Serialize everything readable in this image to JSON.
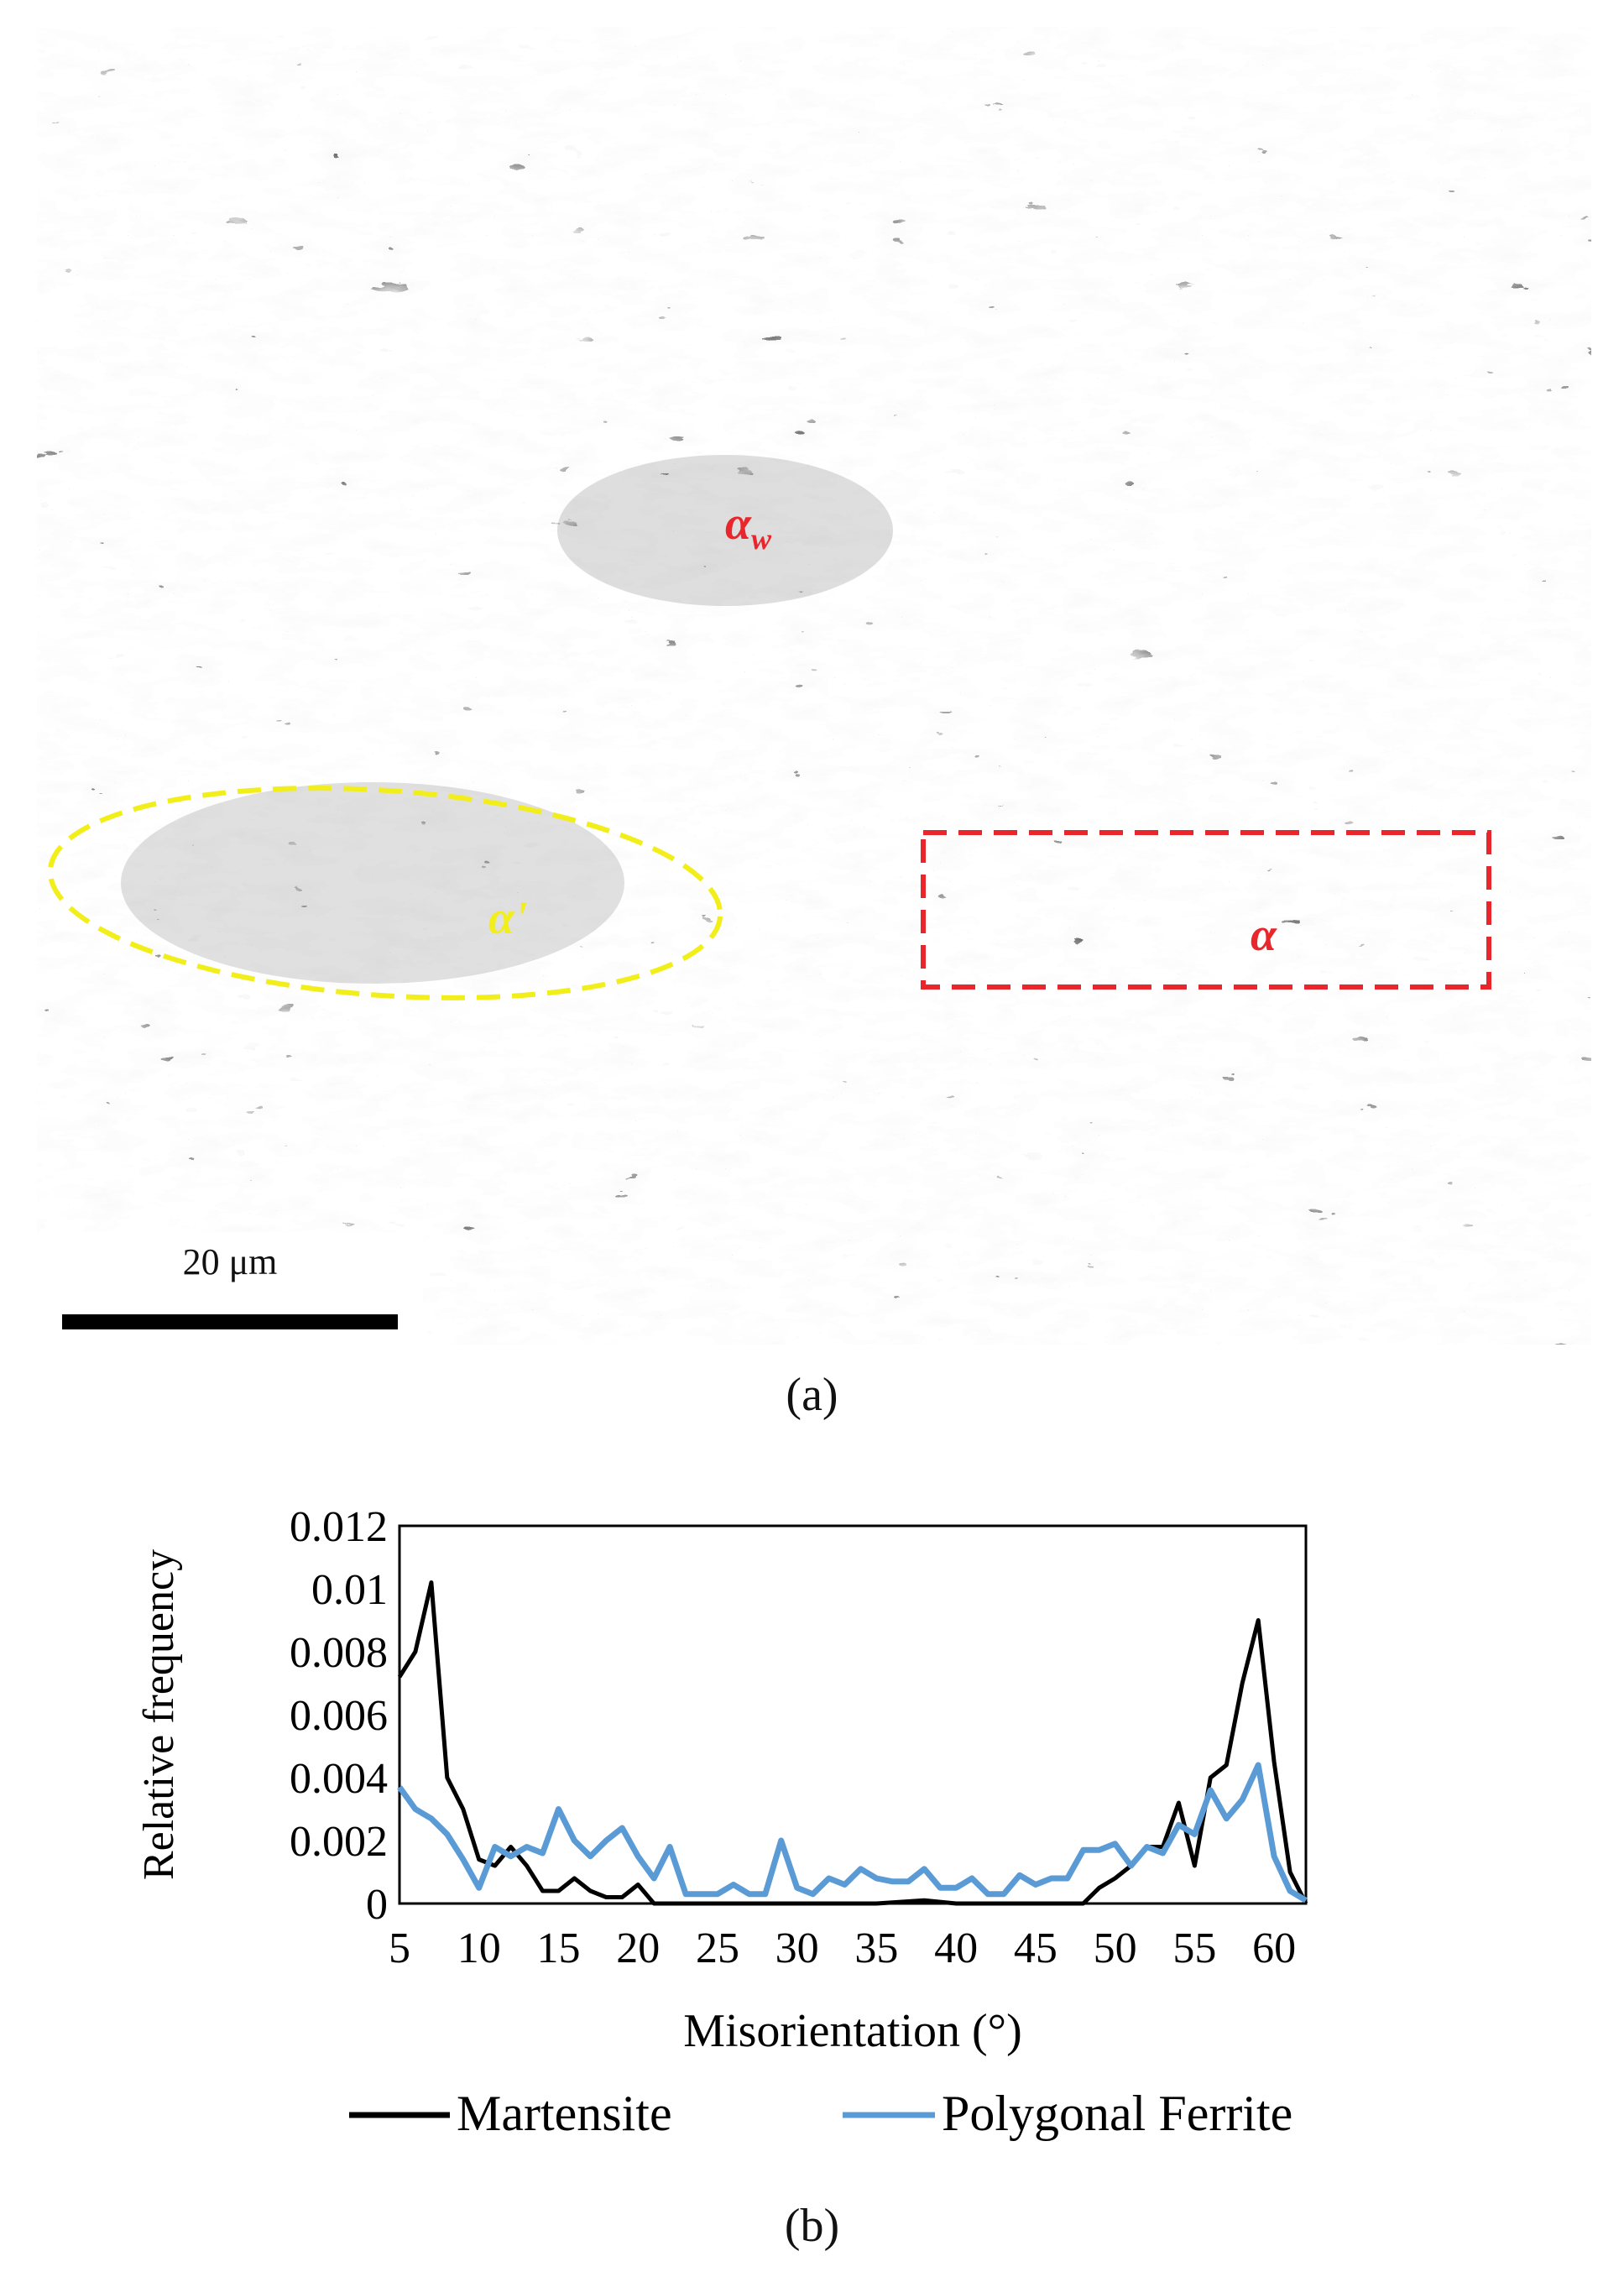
{
  "panel_a": {
    "caption": "(a)",
    "scale_bar": "20 μm",
    "labels": {
      "widmanstatten": "α",
      "widmanstatten_sub": "w",
      "martensite": "α'",
      "ferrite": "α"
    },
    "colors": {
      "red_label": "#e8262b",
      "yellow_label": "#f2ee1a"
    }
  },
  "panel_b": {
    "caption": "(b)"
  },
  "chart_data": {
    "type": "line",
    "title": "",
    "xlabel": "Misorientation (°)",
    "ylabel": "Relative frequency",
    "xlim": [
      5,
      62
    ],
    "ylim": [
      0,
      0.012
    ],
    "x_ticks": [
      "5",
      "10",
      "15",
      "20",
      "25",
      "30",
      "35",
      "40",
      "45",
      "50",
      "55",
      "60"
    ],
    "y_ticks": [
      "0",
      "0.002",
      "0.004",
      "0.006",
      "0.008",
      "0.01",
      "0.012"
    ],
    "legend_position": "bottom",
    "series": [
      {
        "name": "Martensite",
        "color": "#000000",
        "points": [
          [
            5,
            0.0072
          ],
          [
            6,
            0.008
          ],
          [
            7,
            0.0102
          ],
          [
            8,
            0.004
          ],
          [
            9,
            0.003
          ],
          [
            10,
            0.0014
          ],
          [
            11,
            0.0012
          ],
          [
            12,
            0.0018
          ],
          [
            13,
            0.0012
          ],
          [
            14,
            0.0004
          ],
          [
            15,
            0.0004
          ],
          [
            16,
            0.0008
          ],
          [
            17,
            0.0004
          ],
          [
            18,
            0.0002
          ],
          [
            19,
            0.0002
          ],
          [
            20,
            0.0006
          ],
          [
            21,
            0.0
          ],
          [
            22,
            0.0
          ],
          [
            25,
            0.0
          ],
          [
            30,
            0.0
          ],
          [
            35,
            0.0
          ],
          [
            38,
            0.0001
          ],
          [
            40,
            0.0
          ],
          [
            45,
            0.0
          ],
          [
            48,
            0.0
          ],
          [
            49,
            0.0005
          ],
          [
            50,
            0.0008
          ],
          [
            51,
            0.0012
          ],
          [
            52,
            0.0018
          ],
          [
            53,
            0.0018
          ],
          [
            54,
            0.0032
          ],
          [
            55,
            0.0012
          ],
          [
            56,
            0.004
          ],
          [
            57,
            0.0044
          ],
          [
            58,
            0.007
          ],
          [
            59,
            0.009
          ],
          [
            60,
            0.0045
          ],
          [
            61,
            0.001
          ],
          [
            62,
            0.0
          ]
        ]
      },
      {
        "name": "Polygonal Ferrite",
        "color": "#5b9bd5",
        "points": [
          [
            5,
            0.0037
          ],
          [
            6,
            0.003
          ],
          [
            7,
            0.0027
          ],
          [
            8,
            0.0022
          ],
          [
            9,
            0.0014
          ],
          [
            10,
            0.0005
          ],
          [
            11,
            0.0018
          ],
          [
            12,
            0.0015
          ],
          [
            13,
            0.0018
          ],
          [
            14,
            0.0016
          ],
          [
            15,
            0.003
          ],
          [
            16,
            0.002
          ],
          [
            17,
            0.0015
          ],
          [
            18,
            0.002
          ],
          [
            19,
            0.0024
          ],
          [
            20,
            0.0015
          ],
          [
            21,
            0.0008
          ],
          [
            22,
            0.0018
          ],
          [
            23,
            0.0003
          ],
          [
            24,
            0.0003
          ],
          [
            25,
            0.0003
          ],
          [
            26,
            0.0006
          ],
          [
            27,
            0.0003
          ],
          [
            28,
            0.0003
          ],
          [
            29,
            0.002
          ],
          [
            30,
            0.0005
          ],
          [
            31,
            0.0003
          ],
          [
            32,
            0.0008
          ],
          [
            33,
            0.0006
          ],
          [
            34,
            0.0011
          ],
          [
            35,
            0.0008
          ],
          [
            36,
            0.0007
          ],
          [
            37,
            0.0007
          ],
          [
            38,
            0.0011
          ],
          [
            39,
            0.0005
          ],
          [
            40,
            0.0005
          ],
          [
            41,
            0.0008
          ],
          [
            42,
            0.0003
          ],
          [
            43,
            0.0003
          ],
          [
            44,
            0.0009
          ],
          [
            45,
            0.0006
          ],
          [
            46,
            0.0008
          ],
          [
            47,
            0.0008
          ],
          [
            48,
            0.0017
          ],
          [
            49,
            0.0017
          ],
          [
            50,
            0.0019
          ],
          [
            51,
            0.0012
          ],
          [
            52,
            0.0018
          ],
          [
            53,
            0.0016
          ],
          [
            54,
            0.0025
          ],
          [
            55,
            0.0022
          ],
          [
            56,
            0.0036
          ],
          [
            57,
            0.0027
          ],
          [
            58,
            0.0033
          ],
          [
            59,
            0.0044
          ],
          [
            60,
            0.0015
          ],
          [
            61,
            0.0004
          ],
          [
            62,
            0.0001
          ]
        ]
      }
    ]
  }
}
